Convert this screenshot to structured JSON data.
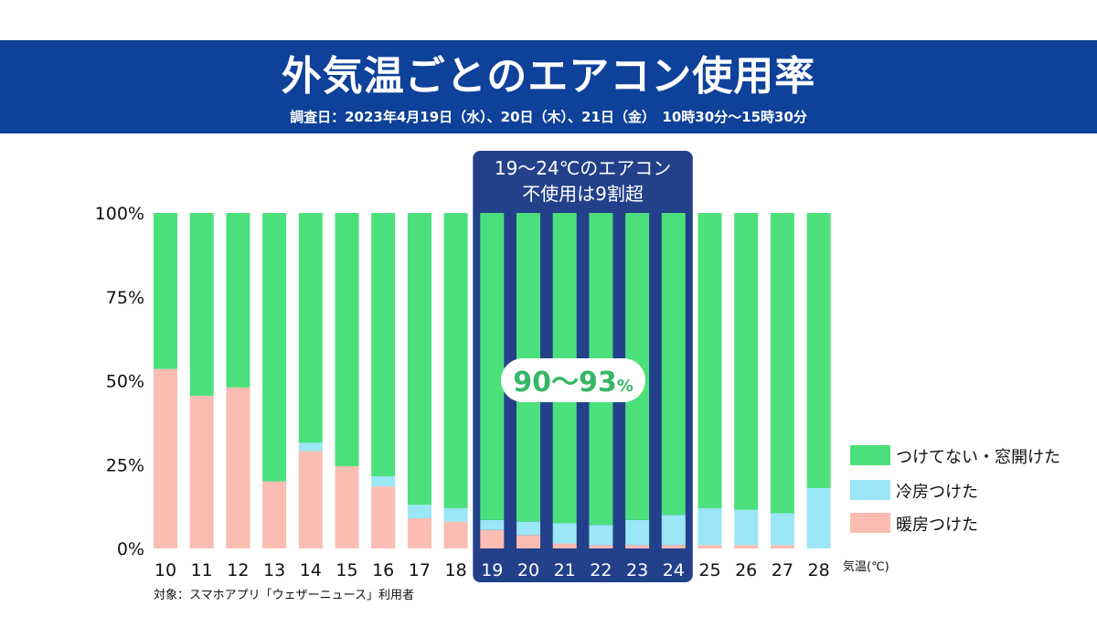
{
  "header": {
    "title": "外気温ごとのエアコン使用率",
    "subtitle": "調査日：2023年4月19日（水）、20日（木）、21日（金）　10時30分〜15時30分"
  },
  "footnote": "対象：スマホアプリ「ウェザーニュース」利用者",
  "colors": {
    "banner": "#0e4199",
    "none": "#4be07c",
    "cool": "#9be6f7",
    "heat": "#fbbcb2",
    "highlight": "#23418a"
  },
  "chart_data": {
    "type": "bar",
    "stacked": true,
    "categories": [
      "10",
      "11",
      "12",
      "13",
      "14",
      "15",
      "16",
      "17",
      "18",
      "19",
      "20",
      "21",
      "22",
      "23",
      "24",
      "25",
      "26",
      "27",
      "28"
    ],
    "series": [
      {
        "name": "暖房つけた",
        "color": "#fbbcb2",
        "values": [
          53.5,
          45.5,
          48,
          20,
          29,
          24.5,
          18.5,
          9,
          8,
          5.5,
          4,
          1.5,
          1,
          1,
          1,
          1,
          1,
          1,
          0
        ]
      },
      {
        "name": "冷房つけた",
        "color": "#9be6f7",
        "values": [
          0,
          0,
          0,
          0,
          2.5,
          0,
          3,
          4,
          4,
          3,
          4,
          6,
          6,
          7.5,
          9,
          11,
          10.5,
          9.5,
          18
        ]
      },
      {
        "name": "つけてない・窓開けた",
        "color": "#4be07c",
        "values": [
          46.5,
          54.5,
          52,
          80,
          68.5,
          75.5,
          78.5,
          87,
          88,
          91.5,
          92,
          92.5,
          93,
          91.5,
          90,
          88,
          88.5,
          89.5,
          82
        ]
      }
    ],
    "ylim": [
      0,
      100
    ],
    "yticks": [
      "0%",
      "25%",
      "50%",
      "75%",
      "100%"
    ],
    "xlabel": "気温(℃)",
    "legend_order": [
      "つけてない・窓開けた",
      "冷房つけた",
      "暖房つけた"
    ],
    "highlight": {
      "range": [
        "19",
        "24"
      ],
      "label_line1": "19〜24℃のエアコン",
      "label_line2": "不使用は9割超",
      "callout_main": "90〜93",
      "callout_unit": "%"
    }
  }
}
